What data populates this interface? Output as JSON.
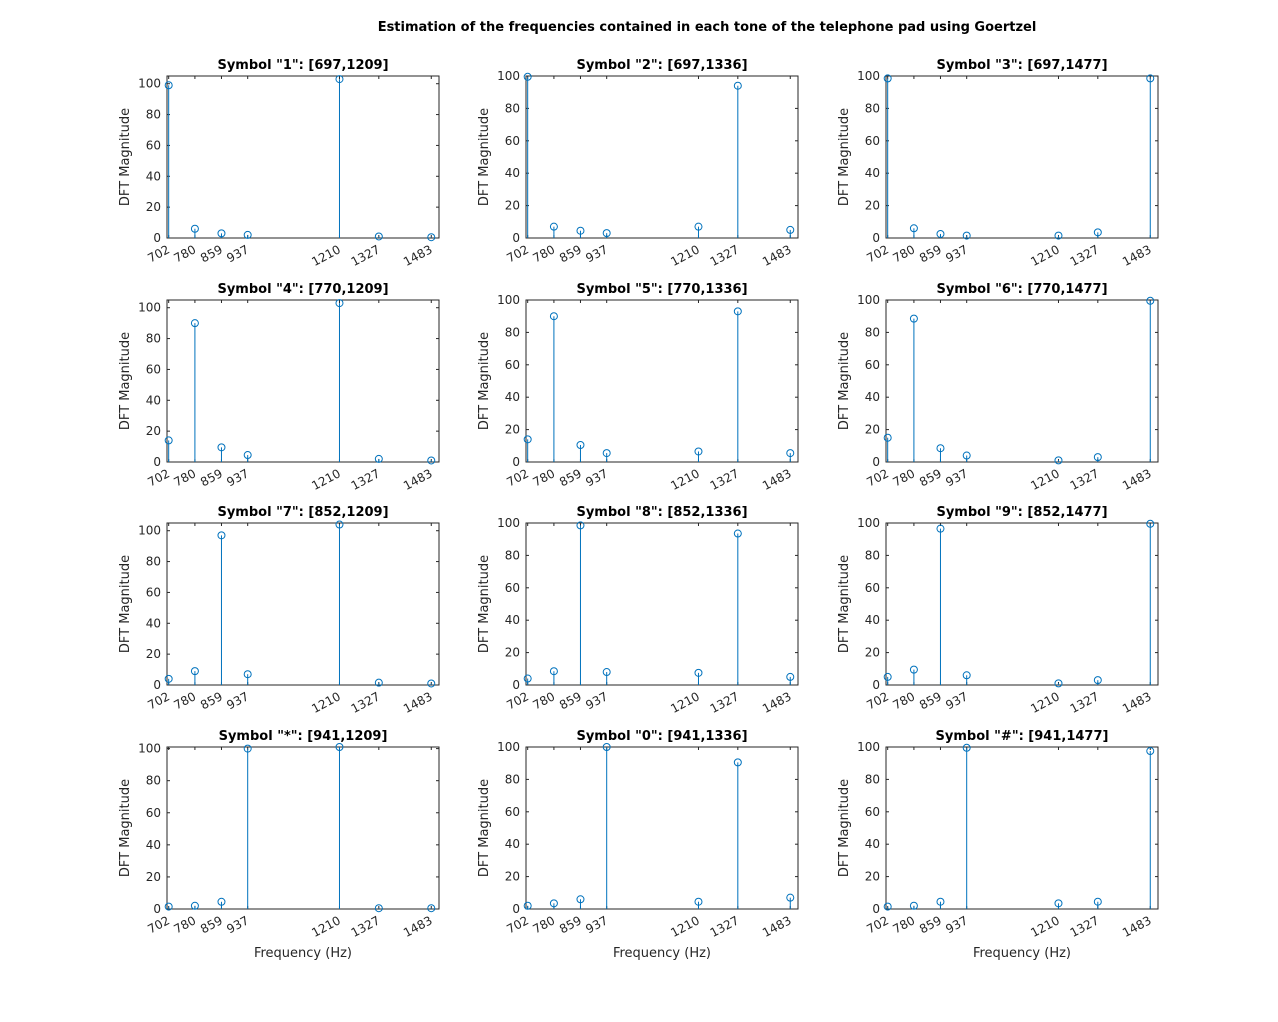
{
  "colors": {
    "series": "#0072BD",
    "axis": "#262626",
    "background": "#ffffff"
  },
  "chart_data": {
    "type": "stem",
    "title": "Estimation of the frequencies contained in each tone of the telephone pad using Goertzel",
    "xlabel": "Frequency (Hz)",
    "ylabel": "DFT Magnitude",
    "x": [
      702,
      780,
      859,
      937,
      1210,
      1327,
      1483
    ],
    "xtick_labels": [
      "702",
      "780",
      "859",
      "937",
      "1210",
      "1327",
      "1483"
    ],
    "xlim": [
      697,
      1506
    ],
    "ytick_labels": [
      "0",
      "20",
      "40",
      "60",
      "80",
      "100"
    ],
    "ytick_values": [
      0,
      20,
      40,
      60,
      80,
      100
    ],
    "grid": false,
    "layout": "4x3 subplots",
    "subplots": [
      {
        "title": "Symbol \"1\": [697,1209]",
        "ylim": [
          0,
          105
        ],
        "values": [
          99,
          6,
          3,
          2,
          103,
          1,
          0.5
        ]
      },
      {
        "title": "Symbol \"2\": [697,1336]",
        "ylim": [
          0,
          100
        ],
        "values": [
          99.5,
          7,
          4.5,
          3,
          7,
          94,
          5
        ]
      },
      {
        "title": "Symbol \"3\": [697,1477]",
        "ylim": [
          0,
          100
        ],
        "values": [
          98.5,
          6,
          2.5,
          1.5,
          1.5,
          3.5,
          98.5
        ]
      },
      {
        "title": "Symbol \"4\": [770,1209]",
        "ylim": [
          0,
          105
        ],
        "values": [
          14,
          90,
          9.5,
          4.5,
          103,
          2,
          1
        ]
      },
      {
        "title": "Symbol \"5\": [770,1336]",
        "ylim": [
          0,
          100
        ],
        "values": [
          14,
          90,
          10.5,
          5.5,
          6.5,
          93,
          5.5
        ]
      },
      {
        "title": "Symbol \"6\": [770,1477]",
        "ylim": [
          0,
          100
        ],
        "values": [
          15,
          88.5,
          8.5,
          4,
          1,
          3,
          99.5
        ]
      },
      {
        "title": "Symbol \"7\": [852,1209]",
        "ylim": [
          0,
          105
        ],
        "values": [
          4,
          9,
          97,
          7,
          104,
          1.5,
          1
        ]
      },
      {
        "title": "Symbol \"8\": [852,1336]",
        "ylim": [
          0,
          100
        ],
        "values": [
          4,
          8.5,
          98.5,
          8,
          7.5,
          93.5,
          5
        ]
      },
      {
        "title": "Symbol \"9\": [852,1477]",
        "ylim": [
          0,
          100
        ],
        "values": [
          5,
          9.5,
          96.5,
          6,
          1,
          3,
          99.5
        ]
      },
      {
        "title": "Symbol \"*\": [941,1209]",
        "ylim": [
          0,
          101
        ],
        "values": [
          1.5,
          2,
          4.5,
          100,
          101,
          0.5,
          0.5
        ]
      },
      {
        "title": "Symbol \"0\": [941,1336]",
        "ylim": [
          0,
          100
        ],
        "values": [
          2,
          3.5,
          6,
          100,
          4.5,
          90.5,
          7
        ]
      },
      {
        "title": "Symbol \"#\": [941,1477]",
        "ylim": [
          0,
          100
        ],
        "values": [
          1.5,
          2,
          4.5,
          99.5,
          3.5,
          4.5,
          97.5
        ]
      }
    ]
  }
}
